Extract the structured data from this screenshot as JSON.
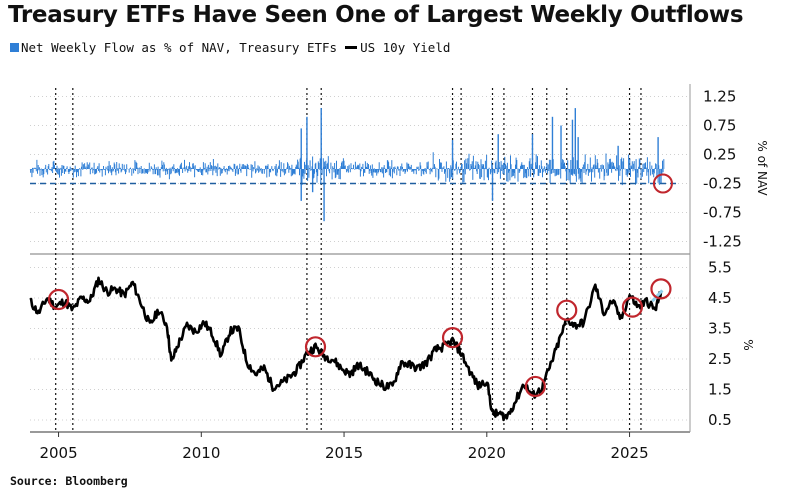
{
  "title": "Treasury ETFs Have Seen One of Largest Weekly Outflows",
  "legend": {
    "flow_label": "Net Weekly Flow as % of NAV, Treasury ETFs",
    "yield_label": "US 10y Yield"
  },
  "source": "Source: Bloomberg",
  "colors": {
    "flow": "#2f7fd6",
    "yield": "#000000",
    "highlight": "#c0262d",
    "recent": "#8fd0ee"
  },
  "chart_data": [
    {
      "type": "bar",
      "name": "Net Weekly Flow as % of NAV, Treasury ETFs",
      "x_range": [
        2004.0,
        2026.2
      ],
      "ylim": [
        -1.5,
        1.5
      ],
      "y_ticks": [
        "1.25",
        "0.75",
        "0.25",
        "-0.25",
        "-0.75",
        "-1.25"
      ],
      "y_tick_values": [
        1.25,
        0.75,
        0.25,
        -0.25,
        -0.75,
        -1.25
      ],
      "ylabel": "% of NAV",
      "reference_line": -0.25,
      "notable_spikes": [
        {
          "x": 2013.5,
          "y": 0.7
        },
        {
          "x": 2013.7,
          "y": 0.9
        },
        {
          "x": 2013.5,
          "y": -0.55
        },
        {
          "x": 2013.9,
          "y": -0.4
        },
        {
          "x": 2014.2,
          "y": 1.05
        },
        {
          "x": 2014.3,
          "y": -0.9
        },
        {
          "x": 2018.8,
          "y": 0.5
        },
        {
          "x": 2020.2,
          "y": -0.55
        },
        {
          "x": 2020.4,
          "y": 0.6
        },
        {
          "x": 2021.6,
          "y": 0.6
        },
        {
          "x": 2022.3,
          "y": 0.9
        },
        {
          "x": 2022.6,
          "y": 0.75
        },
        {
          "x": 2023.0,
          "y": 0.85
        },
        {
          "x": 2023.1,
          "y": 1.05
        },
        {
          "x": 2023.2,
          "y": 0.55
        },
        {
          "x": 2024.6,
          "y": 0.4
        },
        {
          "x": 2026.0,
          "y": 0.55
        },
        {
          "x": 2026.1,
          "y": -0.25
        }
      ],
      "highlight": {
        "x": 2026.1,
        "y": -0.25
      }
    },
    {
      "type": "line",
      "name": "US 10y Yield",
      "ylim": [
        0.2,
        5.8
      ],
      "y_ticks": [
        "5.5",
        "4.5",
        "3.5",
        "2.5",
        "1.5",
        "0.5"
      ],
      "y_tick_values": [
        5.5,
        4.5,
        3.5,
        2.5,
        1.5,
        0.5
      ],
      "ylabel": "%",
      "x": [
        2004.0,
        2004.3,
        2004.6,
        2004.9,
        2005.2,
        2005.5,
        2005.8,
        2006.1,
        2006.4,
        2006.7,
        2007.0,
        2007.3,
        2007.6,
        2007.9,
        2008.2,
        2008.5,
        2008.8,
        2008.95,
        2009.2,
        2009.5,
        2009.8,
        2010.1,
        2010.4,
        2010.7,
        2011.0,
        2011.3,
        2011.6,
        2011.9,
        2012.2,
        2012.5,
        2012.8,
        2013.1,
        2013.4,
        2013.7,
        2014.0,
        2014.3,
        2014.6,
        2014.9,
        2015.2,
        2015.5,
        2015.8,
        2016.1,
        2016.4,
        2016.7,
        2017.0,
        2017.3,
        2017.6,
        2017.9,
        2018.2,
        2018.5,
        2018.8,
        2019.1,
        2019.4,
        2019.7,
        2020.0,
        2020.2,
        2020.4,
        2020.7,
        2021.0,
        2021.3,
        2021.6,
        2021.9,
        2022.2,
        2022.5,
        2022.8,
        2023.1,
        2023.4,
        2023.8,
        2024.1,
        2024.4,
        2024.7,
        2025.0,
        2025.3,
        2025.6,
        2025.9,
        2026.1
      ],
      "y": [
        4.4,
        4.0,
        4.5,
        4.2,
        4.4,
        4.1,
        4.5,
        4.4,
        5.1,
        4.7,
        4.8,
        4.6,
        5.0,
        4.3,
        3.6,
        4.1,
        3.6,
        2.4,
        3.0,
        3.6,
        3.4,
        3.7,
        3.3,
        2.6,
        3.4,
        3.5,
        2.4,
        2.0,
        2.2,
        1.6,
        1.7,
        1.9,
        2.2,
        2.7,
        2.9,
        2.6,
        2.5,
        2.2,
        2.0,
        2.3,
        2.1,
        1.8,
        1.6,
        1.6,
        2.4,
        2.3,
        2.2,
        2.4,
        2.8,
        2.9,
        3.1,
        2.7,
        2.1,
        1.6,
        1.8,
        0.7,
        0.7,
        0.6,
        1.1,
        1.7,
        1.3,
        1.5,
        2.2,
        3.0,
        3.8,
        3.6,
        3.7,
        4.9,
        4.0,
        4.4,
        3.8,
        4.6,
        4.2,
        4.4,
        4.1,
        4.7
      ],
      "highlights": [
        {
          "x": 2005.0,
          "y": 4.45
        },
        {
          "x": 2014.0,
          "y": 2.9
        },
        {
          "x": 2018.8,
          "y": 3.2
        },
        {
          "x": 2021.7,
          "y": 1.6
        },
        {
          "x": 2022.8,
          "y": 4.1
        },
        {
          "x": 2025.1,
          "y": 4.2
        },
        {
          "x": 2026.1,
          "y": 4.8
        }
      ]
    }
  ],
  "x_axis": {
    "ticks": [
      "2005",
      "2010",
      "2015",
      "2020",
      "2025"
    ],
    "tick_values": [
      2005,
      2010,
      2015,
      2020,
      2025
    ]
  },
  "event_markers": [
    2004.9,
    2005.5,
    2013.7,
    2014.2,
    2018.8,
    2019.1,
    2020.2,
    2020.6,
    2021.6,
    2022.1,
    2022.8,
    2025.0,
    2025.4
  ]
}
